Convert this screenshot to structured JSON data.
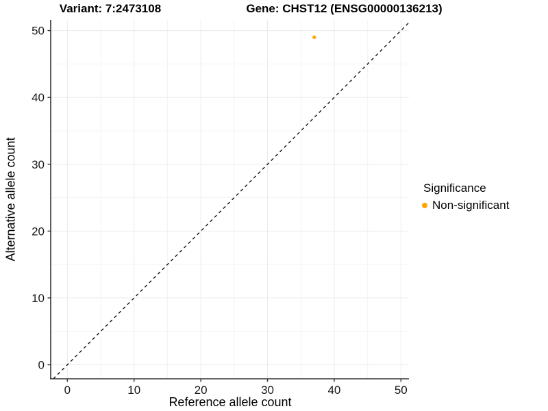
{
  "titles": {
    "variant": "Variant: 7:2473108",
    "gene": "Gene: CHST12 (ENSG00000136213)"
  },
  "axes": {
    "x_label": "Reference allele count",
    "y_label": "Alternative allele count"
  },
  "legend": {
    "title": "Significance",
    "items": [
      {
        "label": "Non-significant",
        "color": "#FFA500"
      }
    ]
  },
  "colors": {
    "point_orange": "#FFA500",
    "grid_major": "#ebebeb",
    "grid_minor": "#f4f4f4",
    "axis_line": "#333333",
    "tick_text": "#1a1a1a",
    "identity_line": "#000000"
  },
  "chart_data": {
    "type": "scatter",
    "title": "Variant: 7:2473108 / Gene: CHST12 (ENSG00000136213)",
    "xlabel": "Reference allele count",
    "ylabel": "Alternative allele count",
    "xlim": [
      -2.5,
      51.2
    ],
    "ylim": [
      -2.1,
      51.6
    ],
    "x_ticks": [
      0,
      10,
      20,
      30,
      40,
      50
    ],
    "y_ticks": [
      0,
      10,
      20,
      30,
      40,
      50
    ],
    "grid": true,
    "legend_position": "right",
    "identity_line": {
      "style": "dashed",
      "equation": "y = x",
      "color": "#000000"
    },
    "series": [
      {
        "name": "Non-significant",
        "color": "#FFA500",
        "points": [
          {
            "x": 37,
            "y": 49
          }
        ]
      }
    ]
  }
}
